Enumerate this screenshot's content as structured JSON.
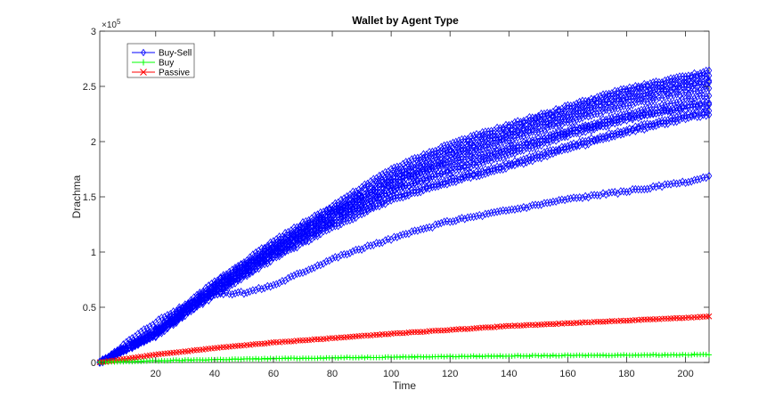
{
  "chart_data": {
    "type": "line",
    "title": "Wallet by Agent Type",
    "xlabel": "Time",
    "ylabel": "Drachma",
    "xlim": [
      1,
      208
    ],
    "ylim": [
      0,
      300000
    ],
    "y_exponent_label": "×10",
    "y_exponent": "5",
    "x_ticks": [
      20,
      40,
      60,
      80,
      100,
      120,
      140,
      160,
      180,
      200
    ],
    "y_ticks": [
      0,
      50000,
      100000,
      150000,
      200000,
      250000,
      300000
    ],
    "y_tick_labels": [
      "0",
      "0.5",
      "1",
      "1.5",
      "2",
      "2.5",
      "3"
    ],
    "grid": false,
    "legend_position": "top-left",
    "colors": {
      "buy_sell": "#0000ff",
      "buy": "#00ff00",
      "passive": "#ff0000",
      "axis": "#262626"
    },
    "legend": [
      {
        "name": "Buy-Sell",
        "color": "#0000ff",
        "marker": "diamond"
      },
      {
        "name": "Buy",
        "color": "#00ff00",
        "marker": "plus"
      },
      {
        "name": "Passive",
        "color": "#ff0000",
        "marker": "x"
      }
    ],
    "series": [
      {
        "group": "Buy-Sell",
        "x": [
          1,
          20,
          40,
          60,
          80,
          100,
          120,
          140,
          160,
          180,
          200,
          208
        ],
        "values": [
          0,
          30000,
          73000,
          110000,
          142000,
          175000,
          198000,
          215000,
          232000,
          248000,
          259000,
          264000
        ]
      },
      {
        "group": "Buy-Sell",
        "x": [
          1,
          20,
          40,
          60,
          80,
          100,
          120,
          140,
          160,
          180,
          200,
          208
        ],
        "values": [
          0,
          29000,
          71000,
          107000,
          139000,
          171000,
          194000,
          212000,
          229000,
          245000,
          256000,
          260000
        ]
      },
      {
        "group": "Buy-Sell",
        "x": [
          1,
          20,
          40,
          60,
          80,
          100,
          120,
          140,
          160,
          180,
          200,
          208
        ],
        "values": [
          0,
          28000,
          69000,
          105000,
          136000,
          167000,
          190000,
          208000,
          225000,
          241000,
          252000,
          256000
        ]
      },
      {
        "group": "Buy-Sell",
        "x": [
          1,
          20,
          40,
          60,
          80,
          100,
          120,
          140,
          160,
          180,
          200,
          208
        ],
        "values": [
          0,
          27000,
          67000,
          103000,
          134000,
          164000,
          187000,
          205000,
          222000,
          238000,
          249000,
          253000
        ]
      },
      {
        "group": "Buy-Sell",
        "x": [
          1,
          20,
          40,
          60,
          80,
          100,
          120,
          140,
          160,
          180,
          200,
          208
        ],
        "values": [
          0,
          26000,
          66000,
          101000,
          131000,
          160000,
          183000,
          201000,
          218000,
          233000,
          244000,
          248000
        ]
      },
      {
        "group": "Buy-Sell",
        "x": [
          1,
          20,
          40,
          60,
          80,
          100,
          120,
          140,
          160,
          180,
          200,
          208
        ],
        "values": [
          0,
          27000,
          68000,
          103000,
          135000,
          163000,
          180000,
          195000,
          210000,
          225000,
          238000,
          242000
        ]
      },
      {
        "group": "Buy-Sell",
        "x": [
          1,
          20,
          40,
          60,
          80,
          100,
          120,
          140,
          160,
          180,
          200,
          208
        ],
        "values": [
          0,
          26000,
          65000,
          99000,
          128000,
          156000,
          172000,
          188000,
          205000,
          220000,
          232000,
          236000
        ]
      },
      {
        "group": "Buy-Sell",
        "x": [
          1,
          20,
          40,
          60,
          80,
          100,
          120,
          140,
          160,
          180,
          200,
          208
        ],
        "values": [
          0,
          25000,
          64000,
          98000,
          128000,
          155000,
          175000,
          192000,
          208000,
          222000,
          230000,
          233000
        ]
      },
      {
        "group": "Buy-Sell",
        "x": [
          1,
          20,
          40,
          60,
          80,
          100,
          120,
          140,
          160,
          180,
          200,
          208
        ],
        "values": [
          0,
          25000,
          63000,
          96000,
          125000,
          150000,
          166000,
          180000,
          196000,
          211000,
          224000,
          228000
        ]
      },
      {
        "group": "Buy-Sell",
        "x": [
          1,
          20,
          40,
          60,
          80,
          100,
          120,
          140,
          160,
          180,
          200,
          208
        ],
        "values": [
          0,
          24000,
          61000,
          94000,
          122000,
          147000,
          163000,
          177000,
          193000,
          208000,
          221000,
          225000
        ]
      },
      {
        "group": "Buy-Sell",
        "x": [
          1,
          10,
          20,
          30,
          40,
          50,
          60,
          80,
          100,
          120,
          140,
          160,
          180,
          200,
          208
        ],
        "values": [
          0,
          18000,
          37000,
          52000,
          62000,
          63000,
          70000,
          94000,
          112000,
          128000,
          138000,
          148000,
          155000,
          163000,
          168000
        ]
      },
      {
        "group": "Passive",
        "x": [
          1,
          20,
          40,
          60,
          80,
          100,
          120,
          140,
          160,
          180,
          200,
          208
        ],
        "values": [
          0,
          7000,
          13000,
          18000,
          22000,
          26000,
          29500,
          33000,
          35500,
          38000,
          40500,
          41500
        ]
      },
      {
        "group": "Buy",
        "x": [
          1,
          20,
          40,
          60,
          80,
          100,
          120,
          140,
          160,
          180,
          200,
          208
        ],
        "values": [
          0,
          1500,
          2600,
          3500,
          4200,
          4900,
          5400,
          5900,
          6300,
          6700,
          7000,
          7200
        ]
      }
    ]
  }
}
